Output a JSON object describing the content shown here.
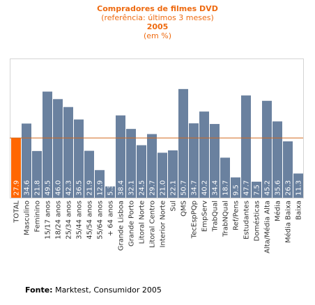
{
  "chart_data": {
    "type": "bar",
    "title": "Compradores de filmes DVD",
    "subtitle": "(referência: últimos 3 meses)",
    "year": "2005",
    "unit": "(em %)",
    "categories": [
      "TOTAL",
      "Masculino",
      "Feminino",
      "15/17 anos",
      "18/24 anos",
      "25/34 anos",
      "35/44 anos",
      "45/54 anos",
      "55/64 anos",
      "+ 64 anos",
      "Grande Lisboa",
      "Grande Porto",
      "Litoral Norte",
      "Litoral Centro",
      "Interior Norte",
      "Sul",
      "QMS",
      "TecEspPQp",
      "EmpServ",
      "TrabQual",
      "TrabNQual",
      "Ref/Pens",
      "Estudantes",
      "Domésticas",
      "Alta/Média Alta",
      "Média",
      "Média Baixa",
      "Baixa"
    ],
    "values": [
      27.9,
      34.6,
      21.8,
      49.5,
      46.0,
      42.3,
      36.5,
      21.9,
      12.9,
      5.3,
      38.4,
      32.1,
      24.5,
      29.7,
      21.0,
      22.1,
      50.7,
      34.7,
      40.2,
      34.4,
      18.7,
      9.5,
      47.7,
      7.5,
      45.2,
      35.6,
      26.3,
      11.3
    ],
    "reference_line": 27.9,
    "highlight_index": 0,
    "colors": {
      "bar": "#6a819f",
      "highlight": "#ff6600",
      "reference_line": "#d2691e",
      "title": "#ee6a10"
    },
    "grid": false,
    "legend": "none"
  },
  "source": {
    "label": "Fonte:",
    "text": "Marktest, Consumidor 2005"
  }
}
